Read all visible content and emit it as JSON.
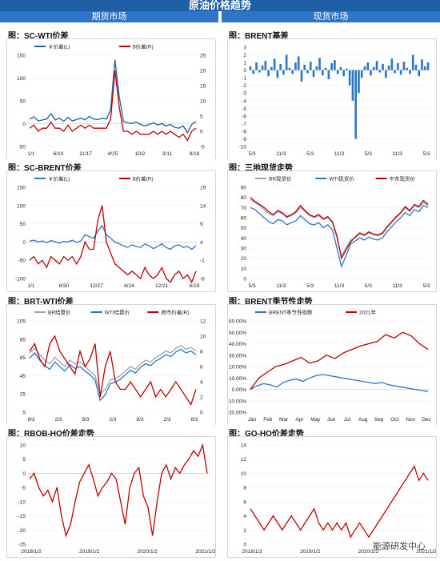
{
  "page": {
    "title": "原油价格趋势",
    "left_header": "期货市场",
    "right_header": "现货市场",
    "watermark": "能源研发中心"
  },
  "chart_data": [
    {
      "id": "sc_wti",
      "title": "图：SC-WTI价差",
      "type": "line",
      "legend": [
        "￥价差(L)",
        "$价差(R)"
      ],
      "series": [
        {
          "name": "￥价差(L)",
          "axis": "left",
          "color": "#1f5fa6",
          "values": [
            10,
            15,
            6,
            8,
            10,
            22,
            8,
            12,
            5,
            14,
            6,
            9,
            12,
            8,
            16,
            10,
            9,
            12,
            10,
            30,
            140,
            60,
            5,
            2,
            0,
            4,
            -2,
            -5,
            -2,
            2,
            -3,
            0,
            -5,
            -2,
            -8,
            -10,
            -5,
            -20,
            -2,
            5
          ]
        },
        {
          "name": "$价差(R)",
          "axis": "right",
          "color": "#c00000",
          "values": [
            1,
            2,
            0,
            1,
            1,
            3,
            1,
            1,
            0,
            2,
            0,
            1,
            2,
            1,
            2,
            1,
            1,
            1,
            1,
            4,
            20,
            8,
            0,
            0,
            -1,
            0,
            -1,
            -1,
            -1,
            0,
            -1,
            0,
            -1,
            0,
            -1,
            -2,
            -1,
            -3,
            0,
            1
          ]
        }
      ],
      "x_labels": [
        "1/1",
        "6/10",
        "11/17",
        "4/25",
        "10/2",
        "3/11",
        "8/18"
      ],
      "y_left": {
        "min": -50,
        "max": 150,
        "ticks": [
          -50,
          0,
          50,
          100,
          150
        ]
      },
      "y_right": {
        "min": -5,
        "max": 25,
        "ticks": [
          -5,
          0,
          5,
          10,
          15,
          20,
          25
        ]
      }
    },
    {
      "id": "brent_basis",
      "title": "图：BRENT基差",
      "type": "bar",
      "series": [
        {
          "name": "BRENT基差",
          "color": "#2e75c9",
          "values": [
            0.5,
            -0.5,
            1,
            -0.3,
            0.6,
            1.2,
            -0.8,
            0.4,
            1.5,
            -1,
            0.8,
            -0.6,
            2,
            0.3,
            -0.5,
            1,
            1.8,
            -1.5,
            0.7,
            -0.4,
            1.1,
            -0.9,
            0.5,
            1.6,
            -0.7,
            0.3,
            -1.2,
            0.9,
            1.3,
            -0.5,
            0.4,
            -0.8,
            0.2,
            -2,
            -4,
            -9,
            -3,
            -1,
            0.5,
            1,
            -0.7,
            0.4,
            1.2,
            -0.3,
            0.8,
            -1,
            0.6,
            1.5,
            -0.4,
            0.9,
            -0.6,
            1.1,
            0.3,
            -0.5,
            2,
            0.7,
            -0.8,
            1.4,
            0.5,
            1
          ]
        }
      ],
      "x_labels": [
        "5/3",
        "11/3",
        "5/3",
        "11/3",
        "5/3",
        "11/3",
        "5/3"
      ],
      "y_left": {
        "min": -10,
        "max": 3,
        "ticks": [
          -10,
          -9,
          -8,
          -7,
          -6,
          -5,
          -4,
          -3,
          -2,
          -1,
          0,
          1,
          2,
          3
        ]
      }
    },
    {
      "id": "sc_brent",
      "title": "图：SC-BRENT价差",
      "type": "line",
      "legend": [
        "￥价差(L)",
        "$价差(R)"
      ],
      "series": [
        {
          "name": "￥价差(L)",
          "axis": "left",
          "color": "#2e75c9",
          "values": [
            2,
            5,
            0,
            3,
            -2,
            4,
            1,
            -3,
            2,
            0,
            5,
            -1,
            3,
            20,
            15,
            10,
            30,
            45,
            20,
            10,
            0,
            -5,
            -10,
            -15,
            -8,
            -12,
            -15,
            -5,
            -10,
            -18,
            -12,
            -5,
            -15,
            -20,
            -10,
            -8,
            -15,
            -12,
            -20,
            -10
          ]
        },
        {
          "name": "$价差(R)",
          "axis": "right",
          "color": "#c00000",
          "values": [
            -1,
            0,
            -2,
            -1,
            -3,
            0,
            -1,
            -2,
            0,
            -1,
            0,
            -2,
            0,
            4,
            2,
            2,
            10,
            14,
            4,
            1,
            -2,
            -3,
            -4,
            -5,
            -4,
            -5,
            -6,
            -3,
            -5,
            -6,
            -5,
            -3,
            -6,
            -7,
            -5,
            -4,
            -6,
            -5,
            -7,
            -4
          ]
        }
      ],
      "x_labels": [
        "1/1",
        "6/30",
        "12/27",
        "6/24",
        "12/21",
        "6/19"
      ],
      "y_left": {
        "min": -100,
        "max": 150,
        "ticks": [
          -100,
          -50,
          0,
          50,
          100,
          150
        ]
      },
      "y_right": {
        "min": -6,
        "max": 19,
        "ticks": [
          -6,
          -1,
          4,
          9,
          14,
          19
        ]
      }
    },
    {
      "id": "spot3",
      "title": "图：三地现货走势",
      "type": "line",
      "legend": [
        "BR现货价",
        "WTI现货价",
        "中东现货价"
      ],
      "series": [
        {
          "name": "BR现货价",
          "color": "#9aa6b2",
          "values": [
            78,
            75,
            72,
            68,
            64,
            62,
            66,
            64,
            60,
            62,
            65,
            70,
            66,
            62,
            60,
            62,
            58,
            60,
            55,
            40,
            22,
            30,
            38,
            40,
            44,
            42,
            45,
            43,
            42,
            44,
            50,
            55,
            60,
            64,
            70,
            66,
            72,
            70,
            75,
            72
          ]
        },
        {
          "name": "WTI现货价",
          "color": "#2e75c9",
          "values": [
            70,
            68,
            64,
            60,
            56,
            54,
            58,
            57,
            53,
            55,
            57,
            62,
            58,
            54,
            53,
            55,
            50,
            53,
            48,
            30,
            12,
            22,
            34,
            37,
            40,
            38,
            41,
            39,
            38,
            40,
            46,
            51,
            56,
            60,
            65,
            62,
            68,
            66,
            72,
            70
          ]
        },
        {
          "name": "中东现货价",
          "color": "#c00000",
          "values": [
            80,
            76,
            73,
            70,
            66,
            63,
            67,
            65,
            61,
            63,
            66,
            72,
            67,
            63,
            61,
            63,
            59,
            61,
            56,
            42,
            20,
            28,
            36,
            41,
            45,
            43,
            46,
            44,
            43,
            45,
            51,
            56,
            61,
            65,
            71,
            67,
            73,
            71,
            77,
            73
          ]
        }
      ],
      "x_labels": [
        "5/3",
        "11/3",
        "5/3",
        "11/3",
        "5/3",
        "11/3",
        "5/3"
      ],
      "y_left": {
        "min": 0,
        "max": 90,
        "ticks": [
          0,
          10,
          20,
          30,
          40,
          50,
          60,
          70,
          80,
          90
        ]
      }
    },
    {
      "id": "brt_wti",
      "title": "图：BRT-WTI价差",
      "type": "line",
      "legend": [
        "BR结算价",
        "WTI结算价",
        "跨市价差(R)"
      ],
      "series": [
        {
          "name": "BR结算价",
          "axis": "left",
          "color": "#9aa6b2",
          "values": [
            70,
            75,
            68,
            62,
            58,
            65,
            60,
            55,
            62,
            58,
            60,
            55,
            50,
            45,
            25,
            30,
            40,
            42,
            45,
            50,
            55,
            52,
            58,
            62,
            60,
            65,
            68,
            72,
            70,
            75,
            78,
            74,
            76,
            72
          ]
        },
        {
          "name": "WTI结算价",
          "axis": "left",
          "color": "#2e75c9",
          "values": [
            64,
            70,
            62,
            56,
            52,
            60,
            55,
            50,
            57,
            53,
            55,
            50,
            46,
            40,
            18,
            24,
            36,
            38,
            41,
            46,
            51,
            48,
            54,
            58,
            56,
            61,
            64,
            68,
            66,
            71,
            74,
            70,
            72,
            68
          ]
        },
        {
          "name": "跨市价差(R)",
          "axis": "right",
          "color": "#c00000",
          "values": [
            8,
            9,
            7,
            6,
            9,
            10,
            8,
            7,
            6,
            5,
            8,
            6,
            7,
            9,
            2,
            6,
            8,
            4,
            3,
            3,
            4,
            3,
            2,
            3,
            4,
            2,
            3,
            2,
            3,
            4,
            3,
            2,
            1,
            3
          ]
        }
      ],
      "x_labels": [
        "8/3",
        "2/3",
        "8/3",
        "2/3",
        "8/3",
        "2/3",
        "8/3"
      ],
      "y_left": {
        "min": 5,
        "max": 105,
        "ticks": [
          5,
          25,
          45,
          65,
          85,
          105
        ]
      },
      "y_right": {
        "min": 0,
        "max": 12,
        "ticks": [
          0,
          2,
          4,
          6,
          8,
          10,
          12
        ]
      }
    },
    {
      "id": "brent_season",
      "title": "图：BRENT季节性走势",
      "type": "line",
      "legend": [
        "BRENT季节性指数",
        "2021年"
      ],
      "series": [
        {
          "name": "BRENT季节性指数",
          "color": "#2e75c9",
          "values": [
            0,
            3,
            5,
            4,
            2,
            6,
            8,
            9,
            7,
            10,
            12,
            13,
            12,
            11,
            10,
            9,
            8,
            7,
            6,
            5,
            6,
            4,
            3,
            2,
            1,
            0,
            -1,
            -2
          ]
        },
        {
          "name": "2021年",
          "color": "#c00000",
          "values": [
            0,
            10,
            15,
            20,
            22,
            25,
            28,
            23,
            25,
            30,
            27,
            32,
            35,
            38,
            40,
            42,
            48,
            45,
            50,
            47,
            40,
            35
          ]
        }
      ],
      "x_labels": [
        "Jan",
        "Feb",
        "Mar",
        "Apr",
        "May",
        "Jun",
        "Jul",
        "Aug",
        "Sep",
        "Oct",
        "Nov",
        "Dec"
      ],
      "y_left": {
        "min": -20,
        "max": 60,
        "ticks": [
          "-20.00%",
          "-10.00%",
          "0.00%",
          "10.00%",
          "20.00%",
          "30.00%",
          "40.00%",
          "50.00%",
          "60.00%"
        ]
      }
    },
    {
      "id": "rbob_ho",
      "title": "图：RBOB-HO价差走势",
      "type": "line",
      "series": [
        {
          "name": "RBOB-HO",
          "color": "#c00000",
          "values": [
            -2,
            0,
            -5,
            -8,
            -6,
            -10,
            -5,
            -15,
            -22,
            -18,
            -10,
            -3,
            0,
            3,
            -2,
            -8,
            -5,
            -3,
            0,
            -2,
            -10,
            -18,
            -5,
            0,
            2,
            -8,
            -12,
            -22,
            -10,
            0,
            3,
            -2,
            2,
            0,
            3,
            5,
            8,
            6,
            10,
            0
          ]
        }
      ],
      "x_labels": [
        "2018/1/2",
        "2019/1/2",
        "2020/1/2",
        "2021/1/2"
      ],
      "y_left": {
        "min": -25,
        "max": 10,
        "ticks": [
          -25,
          -20,
          -15,
          -10,
          -5,
          0,
          5,
          10
        ]
      }
    },
    {
      "id": "go_ho",
      "title": "图：GO-HO价差走势",
      "type": "line",
      "series": [
        {
          "name": "GO-HO",
          "color": "#c00000",
          "values": [
            5,
            4,
            3,
            2,
            3,
            4,
            3,
            2,
            3,
            4,
            3,
            2,
            3,
            4,
            5,
            3,
            2,
            3,
            2,
            3,
            2,
            3,
            1,
            2,
            3,
            2,
            1,
            2,
            3,
            4,
            5,
            6,
            7,
            8,
            9,
            10,
            11,
            9,
            10,
            9
          ]
        }
      ],
      "x_labels": [
        "2018/1/2",
        "2019/1/2",
        "2020/1/2",
        "2021/1/2"
      ],
      "y_left": {
        "min": 0,
        "max": 14,
        "ticks": [
          0,
          2,
          4,
          6,
          8,
          10,
          12,
          14
        ]
      }
    }
  ]
}
